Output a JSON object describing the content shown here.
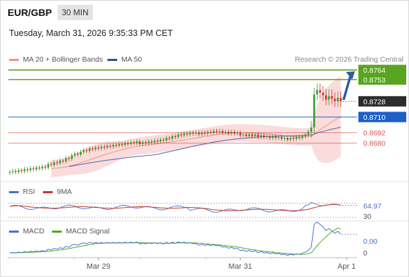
{
  "header": {
    "symbol": "EUR/GBP",
    "interval": "30 MIN",
    "timestamp": "Tuesday, March 31, 2026 9:35:33 PM CET"
  },
  "legend": {
    "bollinger": "MA 20 + Bollinger Bands",
    "ma50": "MA 50",
    "rsi": "RSI",
    "rsi_ma": "9MA",
    "macd": "MACD",
    "macd_signal": "MACD Signal"
  },
  "credit": "Research © 2026 Trading Central",
  "colors": {
    "resistance": "#5aa51f",
    "pivot": "#1f5fc9",
    "support": "#d9534f",
    "current": "#2d2d2d",
    "candle_up": "#3a9a2c",
    "candle_down": "#c9312c",
    "band_fill": "#f9d6d6",
    "ma20": "#ef8f8f",
    "ma50": "#4a68b0",
    "arrow": "#2c5aa8",
    "rsi": "#4a6fc9",
    "rsi_ma": "#c9312c",
    "macd": "#4a6fc9",
    "macd_signal": "#4aa81f"
  },
  "chart_data": [
    {
      "type": "candlestick",
      "panel": "price",
      "levels": [
        {
          "label": "0.8764",
          "value": 0.8764,
          "kind": "resistance"
        },
        {
          "label": "0.8753",
          "value": 0.8753,
          "kind": "resistance"
        },
        {
          "label": "0.8728",
          "value": 0.8728,
          "kind": "current"
        },
        {
          "label": "0.8710",
          "value": 0.871,
          "kind": "pivot"
        },
        {
          "label": "0.8692",
          "value": 0.8692,
          "kind": "support"
        },
        {
          "label": "0.8680",
          "value": 0.868,
          "kind": "support"
        }
      ],
      "ylim": [
        0.8644,
        0.8768
      ],
      "x_ticks": [
        {
          "label": "Mar 29",
          "index": 30
        },
        {
          "label": "Mar 31",
          "index": 78
        },
        {
          "label": "Apr 1",
          "index": 114
        }
      ],
      "n_slots": 118,
      "closes": [
        0.8647,
        0.8648,
        0.8647,
        0.8649,
        0.8648,
        0.865,
        0.8649,
        0.8651,
        0.865,
        0.8652,
        0.8651,
        0.8653,
        0.8652,
        0.8656,
        0.8655,
        0.8658,
        0.8657,
        0.866,
        0.8659,
        0.8663,
        0.8662,
        0.8666,
        0.8668,
        0.8667,
        0.867,
        0.8672,
        0.8671,
        0.8674,
        0.8673,
        0.8675,
        0.8674,
        0.8676,
        0.8675,
        0.8677,
        0.8676,
        0.8678,
        0.8677,
        0.8679,
        0.8678,
        0.868,
        0.8679,
        0.8681,
        0.868,
        0.8682,
        0.8679,
        0.8681,
        0.868,
        0.8682,
        0.8681,
        0.8683,
        0.8682,
        0.8684,
        0.8683,
        0.8686,
        0.8685,
        0.8688,
        0.8687,
        0.869,
        0.8689,
        0.8691,
        0.869,
        0.8692,
        0.8691,
        0.8692,
        0.869,
        0.8692,
        0.8691,
        0.8693,
        0.8692,
        0.8694,
        0.8693,
        0.8694,
        0.8692,
        0.8693,
        0.8691,
        0.8693,
        0.8691,
        0.8692,
        0.8689,
        0.869,
        0.8688,
        0.869,
        0.8688,
        0.869,
        0.8687,
        0.8689,
        0.8687,
        0.8688,
        0.8686,
        0.8688,
        0.8686,
        0.8687,
        0.8685,
        0.8686,
        0.8684,
        0.8686,
        0.8685,
        0.8687,
        0.8686,
        0.8688,
        0.869,
        0.8693,
        0.8698,
        0.8736,
        0.8741,
        0.8738,
        0.8735,
        0.873,
        0.8734,
        0.8731,
        0.8728,
        0.8732,
        0.8728
      ],
      "annotations": [
        "arrow up toward 0.8764 resistance"
      ]
    },
    {
      "type": "line",
      "panel": "rsi",
      "levels": [
        {
          "label": "64.97",
          "value": 64.97
        },
        {
          "label": "30",
          "value": 30
        }
      ],
      "series": [
        {
          "name": "RSI"
        },
        {
          "name": "9MA"
        }
      ]
    },
    {
      "type": "line",
      "panel": "macd",
      "levels": [
        {
          "label": "0.00",
          "value": 0.0
        },
        {
          "label": "0",
          "value": 0
        }
      ],
      "series": [
        {
          "name": "MACD"
        },
        {
          "name": "MACD Signal"
        }
      ]
    }
  ]
}
